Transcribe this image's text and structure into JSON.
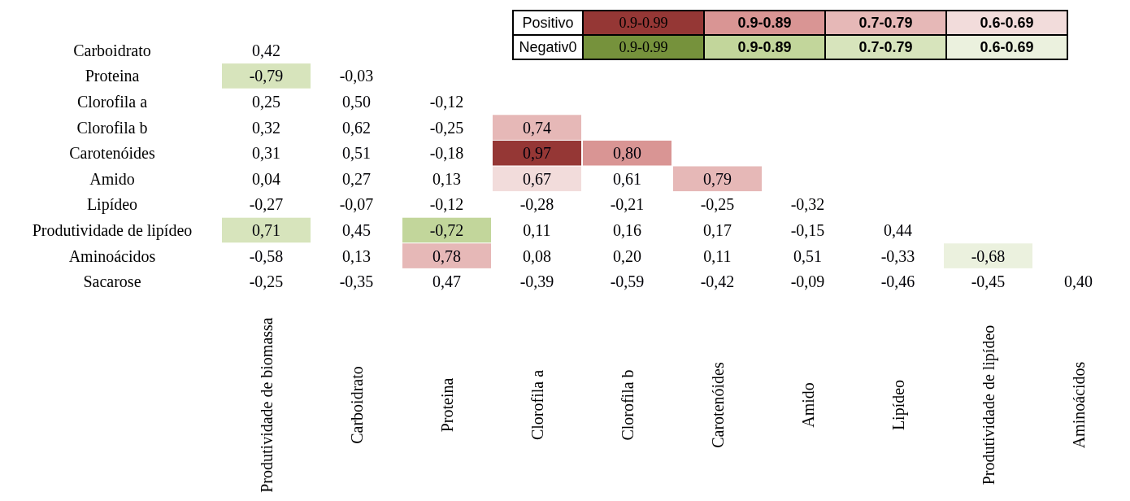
{
  "chart_data": {
    "type": "heatmap",
    "categories": [
      "Produtividade de biomassa",
      "Carboidrato",
      "Proteina",
      "Clorofila a",
      "Clorofila b",
      "Carotenóides",
      "Amido",
      "Lipídeo",
      "Produtividade de lipídeo",
      "Aminoácidos"
    ],
    "y_categories": [
      "Carboidrato",
      "Proteina",
      "Clorofila a",
      "Clorofila b",
      "Carotenóides",
      "Amido",
      "Lipídeo",
      "Produtividade de lipídeo",
      "Aminoácidos",
      "Sacarose"
    ],
    "cells": [
      [
        0.42,
        null,
        null,
        null,
        null,
        null,
        null,
        null,
        null,
        null
      ],
      [
        -0.79,
        -0.03,
        null,
        null,
        null,
        null,
        null,
        null,
        null,
        null
      ],
      [
        0.25,
        0.5,
        -0.12,
        null,
        null,
        null,
        null,
        null,
        null,
        null
      ],
      [
        0.32,
        0.62,
        -0.25,
        0.74,
        null,
        null,
        null,
        null,
        null,
        null
      ],
      [
        0.31,
        0.51,
        -0.18,
        0.97,
        0.8,
        null,
        null,
        null,
        null,
        null
      ],
      [
        0.04,
        0.27,
        0.13,
        0.67,
        0.61,
        0.79,
        null,
        null,
        null,
        null
      ],
      [
        -0.27,
        -0.07,
        -0.12,
        -0.28,
        -0.21,
        -0.25,
        -0.32,
        null,
        null,
        null
      ],
      [
        0.71,
        0.45,
        -0.72,
        0.11,
        0.16,
        0.17,
        -0.15,
        0.44,
        null,
        null
      ],
      [
        -0.58,
        0.13,
        0.78,
        0.08,
        0.2,
        0.11,
        0.51,
        -0.33,
        -0.68,
        null
      ],
      [
        -0.25,
        -0.35,
        0.47,
        -0.39,
        -0.59,
        -0.42,
        -0.09,
        -0.46,
        -0.45,
        0.4
      ]
    ],
    "colors": [
      [
        null,
        null,
        null,
        null,
        null,
        null,
        null,
        null,
        null,
        null
      ],
      [
        "#d7e4bc",
        null,
        null,
        null,
        null,
        null,
        null,
        null,
        null,
        null
      ],
      [
        null,
        null,
        null,
        null,
        null,
        null,
        null,
        null,
        null,
        null
      ],
      [
        null,
        null,
        null,
        "#e6b8b7",
        null,
        null,
        null,
        null,
        null,
        null
      ],
      [
        null,
        null,
        null,
        "#953735",
        "#d99594",
        null,
        null,
        null,
        null,
        null
      ],
      [
        null,
        null,
        null,
        "#f2dcdb",
        null,
        "#e6b8b7",
        null,
        null,
        null,
        null
      ],
      [
        null,
        null,
        null,
        null,
        null,
        null,
        null,
        null,
        null,
        null
      ],
      [
        "#d7e4bc",
        null,
        "#c2d69b",
        null,
        null,
        null,
        null,
        null,
        null,
        null
      ],
      [
        null,
        null,
        "#e6b8b7",
        null,
        null,
        null,
        null,
        null,
        "#ebf1de",
        null
      ],
      [
        null,
        null,
        null,
        null,
        null,
        null,
        null,
        null,
        null,
        null
      ]
    ],
    "cell_labels": [
      [
        "0,42",
        null,
        null,
        null,
        null,
        null,
        null,
        null,
        null,
        null
      ],
      [
        "-0,79",
        "-0,03",
        null,
        null,
        null,
        null,
        null,
        null,
        null,
        null
      ],
      [
        "0,25",
        "0,50",
        "-0,12",
        null,
        null,
        null,
        null,
        null,
        null,
        null
      ],
      [
        "0,32",
        "0,62",
        "-0,25",
        "0,74",
        null,
        null,
        null,
        null,
        null,
        null
      ],
      [
        "0,31",
        "0,51",
        "-0,18",
        "0,97",
        "0,80",
        null,
        null,
        null,
        null,
        null
      ],
      [
        "0,04",
        "0,27",
        "0,13",
        "0,67",
        "0,61",
        "0,79",
        null,
        null,
        null,
        null
      ],
      [
        "-0,27",
        "-0,07",
        "-0,12",
        "-0,28",
        "-0,21",
        "-0,25",
        "-0,32",
        null,
        null,
        null
      ],
      [
        "0,71",
        "0,45",
        "-0,72",
        "0,11",
        "0,16",
        "0,17",
        "-0,15",
        "0,44",
        null,
        null
      ],
      [
        "-0,58",
        "0,13",
        "0,78",
        "0,08",
        "0,20",
        "0,11",
        "0,51",
        "-0,33",
        "-0,68",
        null
      ],
      [
        "-0,25",
        "-0,35",
        "0,47",
        "-0,39",
        "-0,59",
        "-0,42",
        "-0,09",
        "-0,46",
        "-0,45",
        "0,40"
      ]
    ],
    "annotations": [
      "Positivo",
      "0.9-0.99",
      "0.9-0.89",
      "0.7-0.79",
      "0.6-0.69",
      "Negativ0",
      "0.9-0.99",
      "0.9-0.89",
      "0.7-0.79",
      "0.6-0.69"
    ]
  }
}
